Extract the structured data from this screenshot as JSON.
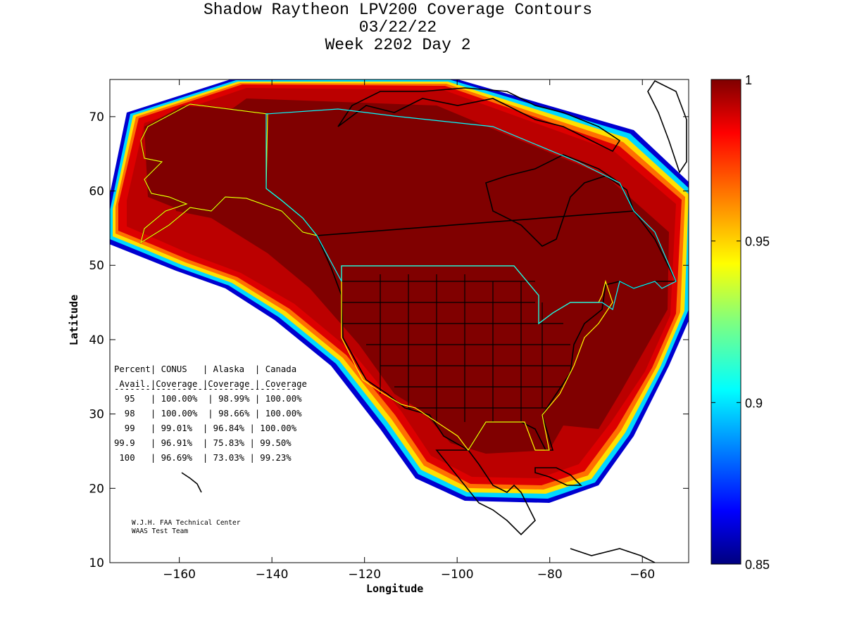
{
  "title": {
    "line1": "Shadow Raytheon LPV200 Coverage Contours",
    "line2": "03/22/22",
    "line3": "Week 2202 Day 2"
  },
  "axes": {
    "xlabel": "Longitude",
    "ylabel": "Latitude",
    "xlim": [
      -175,
      -50
    ],
    "ylim": [
      10,
      75
    ],
    "xticks": [
      -160,
      -140,
      -120,
      -100,
      -80,
      -60
    ],
    "yticks": [
      10,
      20,
      30,
      40,
      50,
      60,
      70
    ]
  },
  "colorbar": {
    "range": [
      0.85,
      1.0
    ],
    "ticks": [
      "1",
      "0.95",
      "0.9",
      "0.85"
    ],
    "colormap": "jet"
  },
  "stats_table": {
    "lines": [
      "Percent| CONUS   | Alaska  | Canada",
      " Avail.|Coverage |Coverage | Coverage",
      "------------------------------------",
      "  95   | 100.00%  | 98.99% | 100.00%",
      "  98   | 100.00%  | 98.66% | 100.00%",
      "  99   | 99.01%  | 96.84% | 100.00%",
      "99.9   | 96.91%  | 75.83% | 99.50%",
      " 100   | 96.69%  | 73.03% | 99.23%"
    ]
  },
  "credit": {
    "line1": "W.J.H. FAA Technical Center",
    "line2": "WAAS Test Team"
  },
  "colors": {
    "coverage_full": "#800000",
    "coverage_high": "#c80000",
    "boundary_conus": "#ffff00",
    "boundary_canada": "#00ffff",
    "coastline": "#000000"
  }
}
